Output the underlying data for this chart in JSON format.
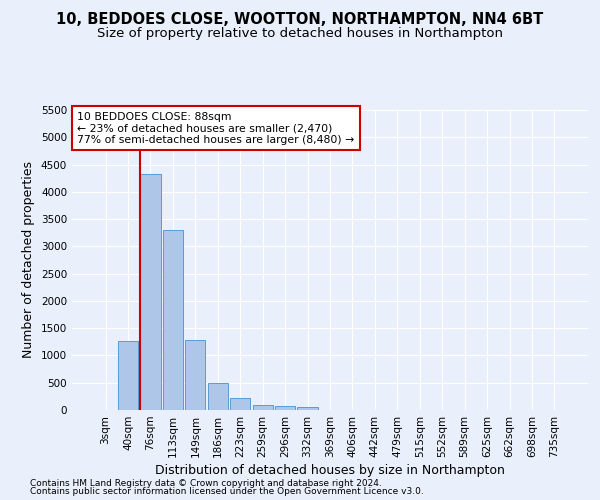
{
  "title_line1": "10, BEDDOES CLOSE, WOOTTON, NORTHAMPTON, NN4 6BT",
  "title_line2": "Size of property relative to detached houses in Northampton",
  "xlabel": "Distribution of detached houses by size in Northampton",
  "ylabel": "Number of detached properties",
  "footnote1": "Contains HM Land Registry data © Crown copyright and database right 2024.",
  "footnote2": "Contains public sector information licensed under the Open Government Licence v3.0.",
  "bar_labels": [
    "3sqm",
    "40sqm",
    "76sqm",
    "113sqm",
    "149sqm",
    "186sqm",
    "223sqm",
    "259sqm",
    "296sqm",
    "332sqm",
    "369sqm",
    "406sqm",
    "442sqm",
    "479sqm",
    "515sqm",
    "552sqm",
    "589sqm",
    "625sqm",
    "662sqm",
    "698sqm",
    "735sqm"
  ],
  "bar_values": [
    0,
    1270,
    4330,
    3300,
    1280,
    490,
    220,
    90,
    70,
    60,
    0,
    0,
    0,
    0,
    0,
    0,
    0,
    0,
    0,
    0,
    0
  ],
  "bar_color": "#aec6e8",
  "bar_edge_color": "#5b9bd5",
  "bg_color": "#eaf0fb",
  "grid_color": "#ffffff",
  "vline_color": "#cc0000",
  "annotation_text": "10 BEDDOES CLOSE: 88sqm\n← 23% of detached houses are smaller (2,470)\n77% of semi-detached houses are larger (8,480) →",
  "annotation_box_color": "#ffffff",
  "annotation_box_edge": "#cc0000",
  "ylim": [
    0,
    5500
  ],
  "yticks": [
    0,
    500,
    1000,
    1500,
    2000,
    2500,
    3000,
    3500,
    4000,
    4500,
    5000,
    5500
  ],
  "title_fontsize": 10.5,
  "subtitle_fontsize": 9.5,
  "axis_label_fontsize": 9,
  "tick_fontsize": 7.5,
  "footnote_fontsize": 6.5
}
